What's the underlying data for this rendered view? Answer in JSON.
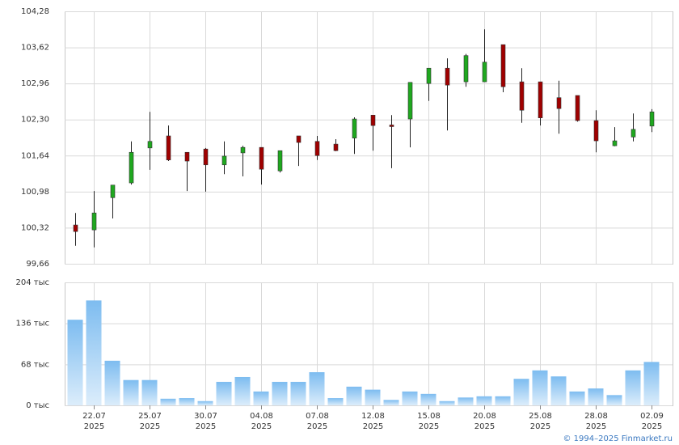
{
  "footer": "© 1994–2025 Finmarket.ru",
  "chart_data": [
    {
      "type": "candlestick",
      "open": [
        100.37,
        100.28,
        100.87,
        101.14,
        101.78,
        102.0,
        101.7,
        101.76,
        101.47,
        101.69,
        101.79,
        101.36,
        102.0,
        101.9,
        101.85,
        101.96,
        102.38,
        102.2,
        102.31,
        102.96,
        103.24,
        102.99,
        102.99,
        103.67,
        102.99,
        102.99,
        102.7,
        102.74,
        102.28,
        101.82,
        101.98,
        102.18
      ],
      "high": [
        100.59,
        100.99,
        101.1,
        101.9,
        102.44,
        102.19,
        101.7,
        101.78,
        101.9,
        101.82,
        101.79,
        101.73,
        102.0,
        102.0,
        101.94,
        102.34,
        102.38,
        102.38,
        102.98,
        103.24,
        103.42,
        103.5,
        103.95,
        103.67,
        103.24,
        102.99,
        103.01,
        102.74,
        102.47,
        102.16,
        102.41,
        102.49
      ],
      "low": [
        99.99,
        99.96,
        100.49,
        101.11,
        101.38,
        101.54,
        100.99,
        100.98,
        101.3,
        101.26,
        101.11,
        101.33,
        101.45,
        101.56,
        101.72,
        101.67,
        101.73,
        101.41,
        101.79,
        102.64,
        102.1,
        102.9,
        102.99,
        102.8,
        102.24,
        102.19,
        102.04,
        102.26,
        101.7,
        101.81,
        101.9,
        102.07
      ],
      "close": [
        100.25,
        100.59,
        101.1,
        101.7,
        101.9,
        101.56,
        101.54,
        101.47,
        101.63,
        101.79,
        101.39,
        101.73,
        101.88,
        101.64,
        101.73,
        102.31,
        102.19,
        102.17,
        102.98,
        103.24,
        102.93,
        103.47,
        103.35,
        102.9,
        102.47,
        102.33,
        102.5,
        102.28,
        101.91,
        101.91,
        102.12,
        102.44
      ],
      "up_color": "#1fa81f",
      "down_color": "#a00000",
      "ylim": [
        99.66,
        104.28
      ],
      "yticks": [
        {
          "value": 99.66,
          "label": "99,66"
        },
        {
          "value": 100.32,
          "label": "100,32"
        },
        {
          "value": 100.98,
          "label": "100,98"
        },
        {
          "value": 101.64,
          "label": "101,64"
        },
        {
          "value": 102.3,
          "label": "102,30"
        },
        {
          "value": 102.96,
          "label": "102,96"
        },
        {
          "value": 103.62,
          "label": "103,62"
        },
        {
          "value": 104.28,
          "label": "104,28"
        }
      ],
      "grid": true
    },
    {
      "type": "bar",
      "categories": [
        null,
        [
          "22.07",
          "2025"
        ],
        null,
        null,
        [
          "25.07",
          "2025"
        ],
        null,
        null,
        [
          "30.07",
          "2025"
        ],
        null,
        null,
        [
          "04.08",
          "2025"
        ],
        null,
        null,
        [
          "07.08",
          "2025"
        ],
        null,
        null,
        [
          "12.08",
          "2025"
        ],
        null,
        null,
        [
          "15.08",
          "2025"
        ],
        null,
        null,
        [
          "20.08",
          "2025"
        ],
        null,
        null,
        [
          "25.08",
          "2025"
        ],
        null,
        null,
        [
          "28.08",
          "2025"
        ],
        null,
        null,
        [
          "02.09",
          "2025"
        ]
      ],
      "values": [
        142,
        174,
        74,
        42,
        42,
        11,
        12,
        7,
        39,
        47,
        23,
        39,
        39,
        55,
        12,
        31,
        26,
        9,
        23,
        19,
        7,
        13,
        15,
        15,
        44,
        58,
        48,
        23,
        28,
        17,
        58,
        72
      ],
      "color": "#7dbcf0",
      "ylim": [
        0,
        204
      ],
      "yticks": [
        {
          "value": 0,
          "label": "0 тыс"
        },
        {
          "value": 68,
          "label": "68 тыс"
        },
        {
          "value": 136,
          "label": "136 тыс"
        },
        {
          "value": 204,
          "label": "204 тыс"
        }
      ],
      "grid": true
    }
  ]
}
